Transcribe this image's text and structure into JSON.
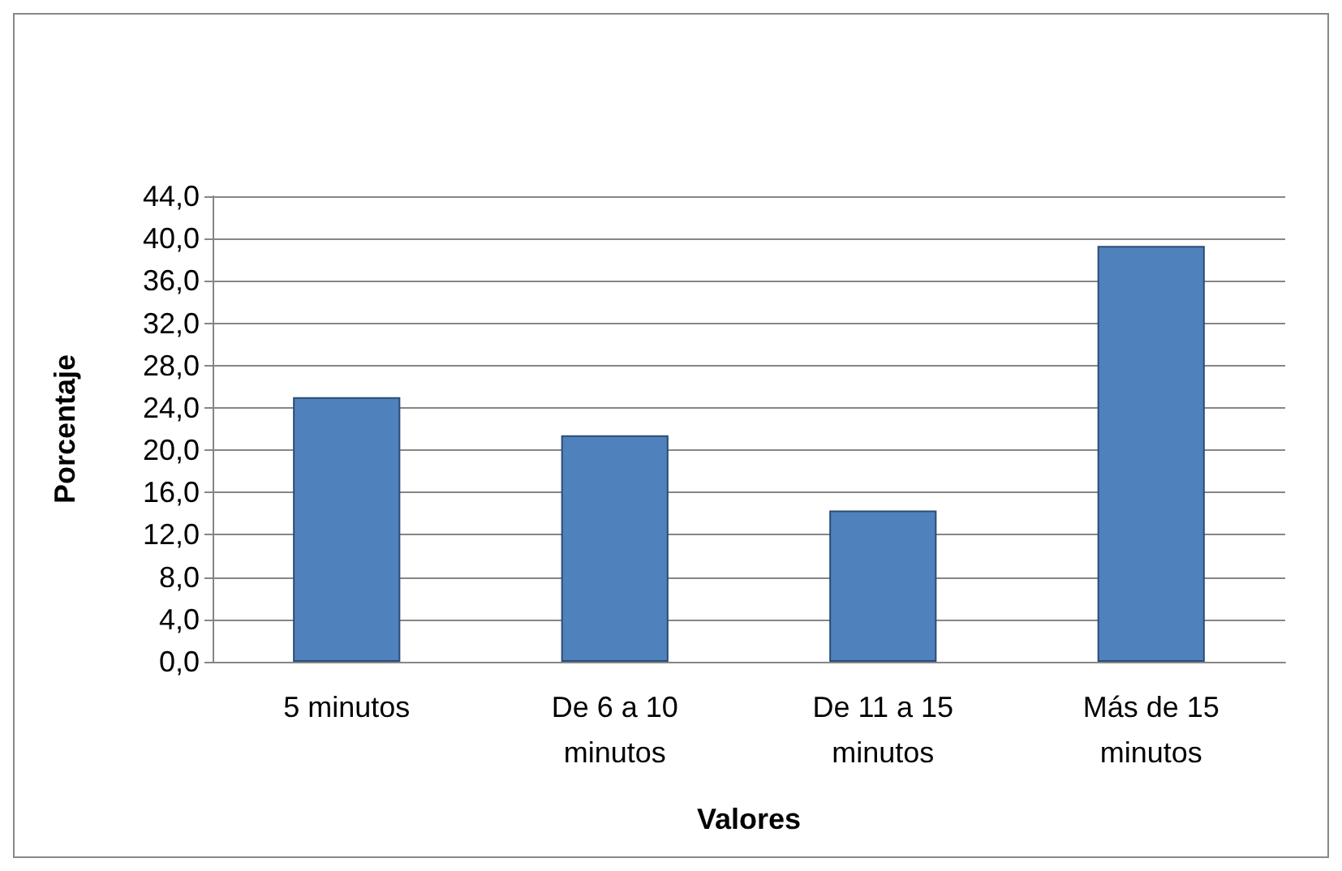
{
  "chart_data": {
    "type": "bar",
    "xlabel": "Valores",
    "ylabel": "Porcentaje",
    "categories": [
      "5 minutos",
      "De 6 a 10\nminutos",
      "De 11 a 15\nminutos",
      "Más de 15\nminutos"
    ],
    "values": [
      25.0,
      21.4,
      14.3,
      39.3
    ],
    "color": "#4f81bd",
    "ylim": [
      0,
      44
    ],
    "yticks": [
      {
        "value": 0,
        "label": "0,0"
      },
      {
        "value": 4,
        "label": "4,0"
      },
      {
        "value": 8,
        "label": "8,0"
      },
      {
        "value": 12,
        "label": "12,0"
      },
      {
        "value": 16,
        "label": "16,0"
      },
      {
        "value": 20,
        "label": "20,0"
      },
      {
        "value": 24,
        "label": "24,0"
      },
      {
        "value": 28,
        "label": "28,0"
      },
      {
        "value": 32,
        "label": "32,0"
      },
      {
        "value": 36,
        "label": "36,0"
      },
      {
        "value": 40,
        "label": "40,0"
      },
      {
        "value": 44,
        "label": "44,0"
      }
    ],
    "grid": "y"
  }
}
